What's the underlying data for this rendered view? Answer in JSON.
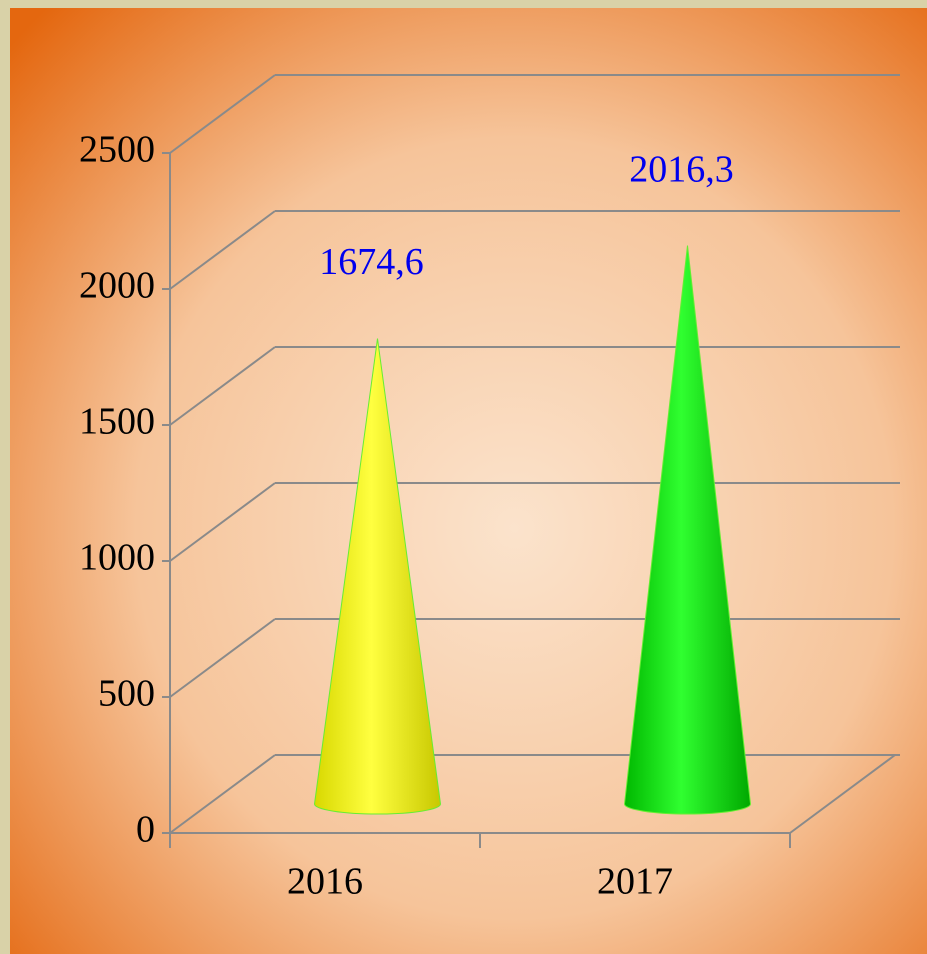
{
  "chart_data": {
    "type": "cone3d",
    "categories": [
      "2016",
      "2017"
    ],
    "values": [
      1674.6,
      2016.3
    ],
    "value_labels": [
      "1674,6",
      "2016,3"
    ],
    "colors": [
      "#ffff00",
      "#00e600"
    ],
    "label_color": "#0000ee",
    "ylim": [
      0,
      2500
    ],
    "yticks": [
      0,
      500,
      1000,
      1500,
      2000,
      2500
    ],
    "grid": true
  }
}
